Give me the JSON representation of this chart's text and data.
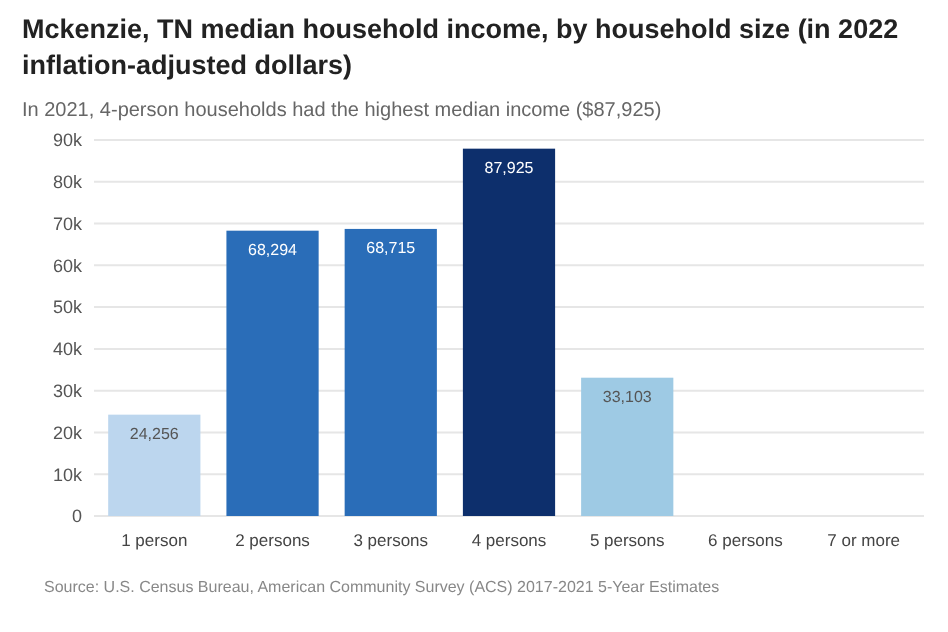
{
  "chart_data": {
    "type": "bar",
    "title": "Mckenzie, TN median household income, by household size (in 2022 inflation-adjusted dollars)",
    "subtitle": "In 2021, 4-person households had the highest median income ($87,925)",
    "categories": [
      "1 person",
      "2 persons",
      "3 persons",
      "4 persons",
      "5 persons",
      "6 persons",
      "7 or more"
    ],
    "values": [
      24256,
      68294,
      68715,
      87925,
      33103,
      null,
      null
    ],
    "colors": [
      "#bcd6ee",
      "#2a6db8",
      "#2a6db8",
      "#0d2f6c",
      "#9ecae4",
      null,
      null
    ],
    "value_labels": [
      "24,256",
      "68,294",
      "68,715",
      "87,925",
      "33,103",
      null,
      null
    ],
    "ylim": [
      0,
      90000
    ],
    "yticks": [
      {
        "value": 0,
        "label": "0"
      },
      {
        "value": 10000,
        "label": "10k"
      },
      {
        "value": 20000,
        "label": "20k"
      },
      {
        "value": 30000,
        "label": "30k"
      },
      {
        "value": 40000,
        "label": "40k"
      },
      {
        "value": 50000,
        "label": "50k"
      },
      {
        "value": 60000,
        "label": "60k"
      },
      {
        "value": 70000,
        "label": "70k"
      },
      {
        "value": 80000,
        "label": "80k"
      },
      {
        "value": 90000,
        "label": "90k"
      }
    ],
    "grid": "y",
    "annotations": [
      "Source: U.S. Census Bureau, American Community Survey (ACS) 2017-2021 5-Year Estimates"
    ]
  }
}
